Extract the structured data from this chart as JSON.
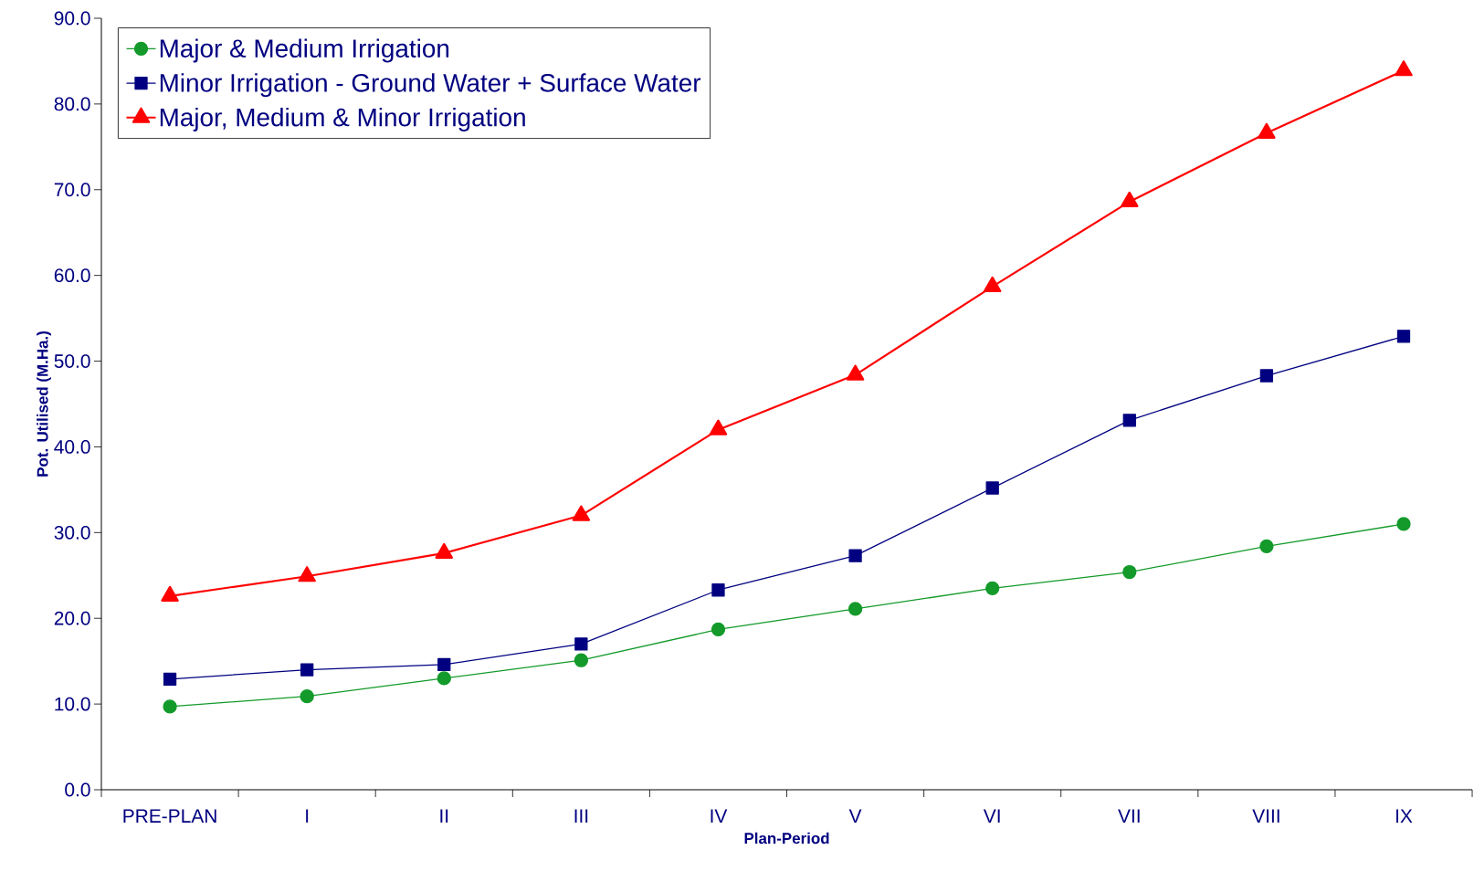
{
  "chart_data": {
    "type": "line",
    "xlabel": "Plan-Period",
    "ylabel": "Pot. Utilised (M.Ha.)",
    "categories": [
      "PRE-PLAN",
      "I",
      "II",
      "III",
      "IV",
      "V",
      "VI",
      "VII",
      "VIII",
      "IX"
    ],
    "series": [
      {
        "name": "Major  & Medium Irrigation",
        "color": "#139a2a",
        "marker": "circle",
        "values": [
          9.7,
          10.9,
          13.0,
          15.1,
          18.7,
          21.1,
          23.5,
          25.4,
          28.4,
          31.0
        ]
      },
      {
        "name": "Minor Irrigation - Ground Water + Surface Water",
        "color": "#000080",
        "marker": "square",
        "values": [
          12.9,
          14.0,
          14.6,
          17.0,
          23.3,
          27.3,
          35.2,
          43.1,
          48.3,
          52.9
        ]
      },
      {
        "name": "Major, Medium & Minor Irrigation",
        "color": "#ff0000",
        "marker": "triangle",
        "values": [
          22.6,
          24.9,
          27.6,
          32.0,
          42.0,
          48.4,
          58.7,
          68.6,
          76.6,
          83.9
        ]
      }
    ],
    "ylim": [
      0,
      90
    ],
    "yticks": [
      {
        "value": 0,
        "label": "0.0"
      },
      {
        "value": 10,
        "label": "10.0"
      },
      {
        "value": 20,
        "label": "20.0"
      },
      {
        "value": 30,
        "label": "30.0"
      },
      {
        "value": 40,
        "label": "40.0"
      },
      {
        "value": 50,
        "label": "50.0"
      },
      {
        "value": 60,
        "label": "60.0"
      },
      {
        "value": 70,
        "label": "70.0"
      },
      {
        "value": 80,
        "label": "80.0"
      },
      {
        "value": 90,
        "label": "90.0"
      }
    ],
    "grid": false,
    "legend": "top left",
    "line_style": "solid"
  }
}
